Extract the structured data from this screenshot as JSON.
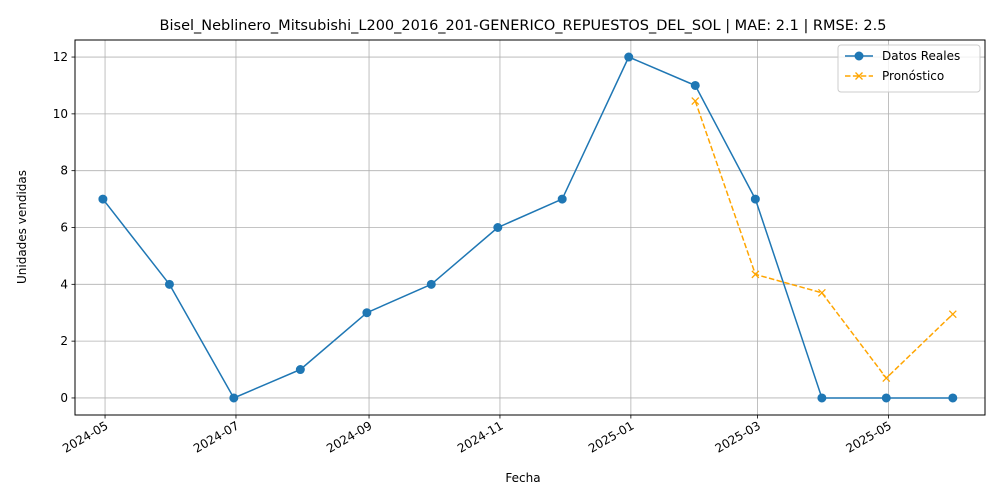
{
  "chart_data": {
    "type": "line",
    "title": "Bisel_Neblinero_Mitsubishi_L200_2016_201-GENERICO_REPUESTOS_DEL_SOL | MAE: 2.1 | RMSE: 2.5",
    "xlabel": "Fecha",
    "ylabel": "Unidades vendidas",
    "x_ticks": [
      "2024-05",
      "2024-07",
      "2024-09",
      "2024-11",
      "2025-01",
      "2025-03",
      "2025-05"
    ],
    "y_ticks": [
      0,
      2,
      4,
      6,
      8,
      10,
      12
    ],
    "ylim": [
      -0.6,
      12.6
    ],
    "xlim": [
      "2024-04-17",
      "2025-06-15"
    ],
    "grid": true,
    "legend_position": "top-right",
    "series": [
      {
        "name": "Datos Reales",
        "color": "#1f77b4",
        "linestyle": "solid",
        "marker": "circle",
        "points": [
          {
            "x": "2024-04-30",
            "y": 7
          },
          {
            "x": "2024-05-31",
            "y": 4
          },
          {
            "x": "2024-06-30",
            "y": 0
          },
          {
            "x": "2024-07-31",
            "y": 1
          },
          {
            "x": "2024-08-31",
            "y": 3
          },
          {
            "x": "2024-09-30",
            "y": 4
          },
          {
            "x": "2024-10-31",
            "y": 6
          },
          {
            "x": "2024-11-30",
            "y": 7
          },
          {
            "x": "2024-12-31",
            "y": 12
          },
          {
            "x": "2025-01-31",
            "y": 11
          },
          {
            "x": "2025-02-28",
            "y": 7
          },
          {
            "x": "2025-03-31",
            "y": 0
          },
          {
            "x": "2025-04-30",
            "y": 0
          },
          {
            "x": "2025-05-31",
            "y": 0
          }
        ]
      },
      {
        "name": "Pronóstico",
        "color": "#ffa500",
        "linestyle": "dashed",
        "marker": "x",
        "points": [
          {
            "x": "2025-01-31",
            "y": 10.45
          },
          {
            "x": "2025-02-28",
            "y": 4.35
          },
          {
            "x": "2025-03-31",
            "y": 3.7
          },
          {
            "x": "2025-04-30",
            "y": 0.7
          },
          {
            "x": "2025-05-31",
            "y": 2.95
          }
        ]
      }
    ]
  }
}
